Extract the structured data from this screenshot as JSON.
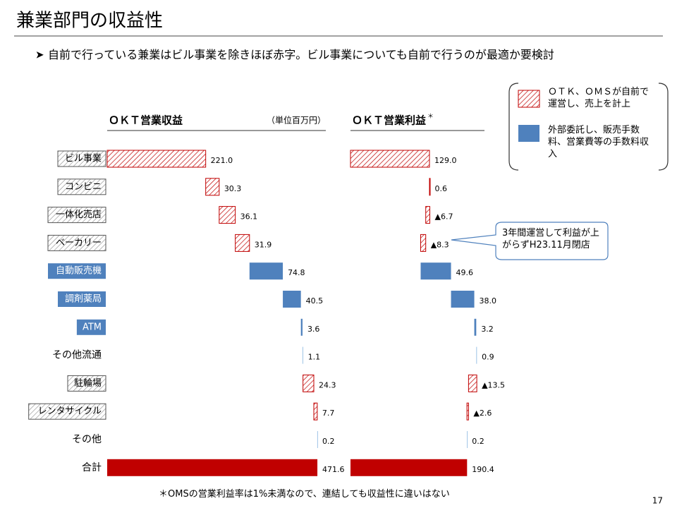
{
  "slide": {
    "title": "兼業部門の収益性",
    "bullet": "自前で行っている兼業はビル事業を除きほぼ赤字。ビル事業についても自前で行うのが最適か要検討",
    "legend": [
      {
        "style": "hatch",
        "label": "ＯＴＫ、ＯＭＳが自前で運営し、売上を計上"
      },
      {
        "style": "solid",
        "label": "外部委託し、販売手数料、営業費等の手数料収入"
      }
    ],
    "callout": "3年間運営して利益が上がらずH23.11月閉店",
    "note": "＊OMSの営業利益率は1%未満なので、連結しても収益性に違いはない",
    "page": "17"
  },
  "chart_data": [
    {
      "type": "waterfall",
      "title": "ＯＫＴ営業収益",
      "unit": "（単位百万円）",
      "categories": [
        "ビル事業",
        "コンビニ",
        "一体化売店",
        "ベーカリー",
        "自動販売機",
        "調剤薬局",
        "ATM",
        "その他流通",
        "駐輪場",
        "レンタサイクル",
        "その他",
        "合計"
      ],
      "values": [
        221.0,
        30.3,
        36.1,
        31.9,
        74.8,
        40.5,
        3.6,
        1.1,
        24.3,
        7.7,
        0.2,
        471.6
      ],
      "value_labels": [
        "221.0",
        "30.3",
        "36.1",
        "31.9",
        "74.8",
        "40.5",
        "3.6",
        "1.1",
        "24.3",
        "7.7",
        "0.2",
        "471.6"
      ],
      "bar_styles": [
        "hatch",
        "hatch",
        "hatch",
        "hatch",
        "solid",
        "solid",
        "solid",
        "light",
        "hatch",
        "hatch",
        "light",
        "total"
      ],
      "colors": {
        "hatch": "#c00000",
        "solid": "#4f81bd",
        "light": "#9dc3e6",
        "total": "#c00000"
      },
      "xlim": [
        0,
        500
      ]
    },
    {
      "type": "waterfall",
      "title": "ＯＫＴ営業利益",
      "title_mark": "＊",
      "values": [
        129.0,
        0.6,
        -6.7,
        -8.3,
        49.6,
        38.0,
        3.2,
        0.9,
        -13.5,
        -2.6,
        0.2,
        190.4
      ],
      "value_labels": [
        "129.0",
        "0.6",
        "▲6.7",
        "▲8.3",
        "49.6",
        "38.0",
        "3.2",
        "0.9",
        "▲13.5",
        "▲2.6",
        "0.2",
        "190.4"
      ],
      "bar_styles": [
        "hatch",
        "hatch",
        "hatch",
        "hatch",
        "solid",
        "solid",
        "solid",
        "light",
        "hatch",
        "hatch",
        "light",
        "total"
      ],
      "colors": {
        "hatch": "#c00000",
        "solid": "#4f81bd",
        "light": "#9dc3e6",
        "total": "#c00000"
      },
      "xlim": [
        0,
        220
      ]
    }
  ]
}
